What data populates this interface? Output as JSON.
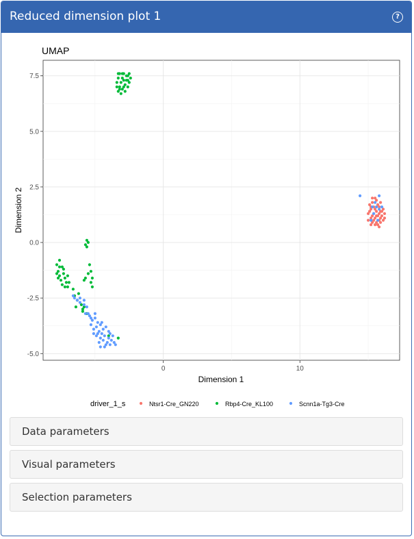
{
  "panel": {
    "title": "Reduced dimension plot 1",
    "help_icon": "question-circle-icon",
    "help_glyph": "?"
  },
  "chart_data": {
    "type": "scatter",
    "title": "UMAP",
    "xlabel": "Dimension 1",
    "ylabel": "Dimension 2",
    "xlim": [
      -8.8,
      17.3
    ],
    "ylim": [
      -5.3,
      8.2
    ],
    "x_ticks": [
      0,
      10
    ],
    "x_tick_labels": [
      "0",
      "10"
    ],
    "y_ticks": [
      7.5,
      5.0,
      2.5,
      0.0,
      -2.5,
      -5.0
    ],
    "y_tick_labels": [
      "7.5",
      "5.0",
      "2.5",
      "0.0",
      "-2.5",
      "-5.0"
    ],
    "grid": true,
    "legend_position": "bottom",
    "legend_title": "driver_1_s",
    "series": [
      {
        "name": "Ntsr1-Cre_GN220",
        "color": "#F8766D",
        "points": [
          [
            15.3,
            2.0
          ],
          [
            15.6,
            1.9
          ],
          [
            15.9,
            1.8
          ],
          [
            15.1,
            1.7
          ],
          [
            15.4,
            1.6
          ],
          [
            15.8,
            1.6
          ],
          [
            16.1,
            1.5
          ],
          [
            15.2,
            1.5
          ],
          [
            15.6,
            1.4
          ],
          [
            15.9,
            1.4
          ],
          [
            16.2,
            1.3
          ],
          [
            15.0,
            1.3
          ],
          [
            15.4,
            1.3
          ],
          [
            15.7,
            1.2
          ],
          [
            16.0,
            1.2
          ],
          [
            15.2,
            1.1
          ],
          [
            15.5,
            1.1
          ],
          [
            15.8,
            1.0
          ],
          [
            16.1,
            1.0
          ],
          [
            15.0,
            1.0
          ],
          [
            15.3,
            0.9
          ],
          [
            15.6,
            0.9
          ],
          [
            15.9,
            0.9
          ],
          [
            15.2,
            0.8
          ],
          [
            15.5,
            0.8
          ],
          [
            15.8,
            0.7
          ],
          [
            15.3,
            1.8
          ],
          [
            15.7,
            1.7
          ],
          [
            15.5,
            1.5
          ],
          [
            15.1,
            1.4
          ],
          [
            16.0,
            1.4
          ],
          [
            15.3,
            1.2
          ],
          [
            15.9,
            1.1
          ],
          [
            15.4,
            1.0
          ],
          [
            15.7,
            0.8
          ],
          [
            16.2,
            1.1
          ],
          [
            15.6,
            1.2
          ],
          [
            15.8,
            1.3
          ],
          [
            15.2,
            1.6
          ],
          [
            15.5,
            2.0
          ]
        ]
      },
      {
        "name": "Rbp4-Cre_KL100",
        "color": "#00BA38",
        "points": [
          [
            -3.2,
            7.6
          ],
          [
            -2.9,
            7.6
          ],
          [
            -2.6,
            7.5
          ],
          [
            -3.3,
            7.4
          ],
          [
            -3.0,
            7.4
          ],
          [
            -2.7,
            7.3
          ],
          [
            -2.4,
            7.4
          ],
          [
            -3.4,
            7.2
          ],
          [
            -3.1,
            7.2
          ],
          [
            -2.8,
            7.1
          ],
          [
            -2.5,
            7.2
          ],
          [
            -3.2,
            7.0
          ],
          [
            -2.9,
            7.0
          ],
          [
            -2.6,
            7.0
          ],
          [
            -3.3,
            6.8
          ],
          [
            -3.0,
            6.9
          ],
          [
            -2.8,
            6.8
          ],
          [
            -3.1,
            6.7
          ],
          [
            -3.4,
            7.0
          ],
          [
            -2.7,
            7.5
          ],
          [
            -3.0,
            7.6
          ],
          [
            -3.3,
            7.6
          ],
          [
            -2.5,
            7.6
          ],
          [
            -2.9,
            7.3
          ],
          [
            -3.2,
            6.9
          ],
          [
            -2.6,
            7.3
          ],
          [
            -7.6,
            -0.8
          ],
          [
            -7.8,
            -1.0
          ],
          [
            -7.4,
            -1.1
          ],
          [
            -7.7,
            -1.3
          ],
          [
            -7.3,
            -1.4
          ],
          [
            -7.6,
            -1.5
          ],
          [
            -7.2,
            -1.6
          ],
          [
            -7.8,
            -1.4
          ],
          [
            -7.5,
            -1.7
          ],
          [
            -7.1,
            -1.8
          ],
          [
            -7.4,
            -1.9
          ],
          [
            -7.0,
            -2.0
          ],
          [
            -7.3,
            -1.2
          ],
          [
            -7.7,
            -1.6
          ],
          [
            -7.6,
            -1.1
          ],
          [
            -7.0,
            -1.5
          ],
          [
            -6.9,
            -1.8
          ],
          [
            -7.2,
            -2.0
          ],
          [
            -5.6,
            0.1
          ],
          [
            -5.5,
            0.0
          ],
          [
            -5.7,
            -0.1
          ],
          [
            -5.6,
            -0.2
          ],
          [
            -5.4,
            -1.0
          ],
          [
            -5.3,
            -1.3
          ],
          [
            -5.5,
            -1.4
          ],
          [
            -5.2,
            -1.6
          ],
          [
            -5.3,
            -1.8
          ],
          [
            -5.2,
            -2.0
          ],
          [
            -5.7,
            -1.6
          ],
          [
            -5.8,
            -1.7
          ],
          [
            -6.6,
            -2.1
          ],
          [
            -6.5,
            -2.4
          ],
          [
            -6.3,
            -2.6
          ],
          [
            -6.0,
            -2.8
          ],
          [
            -5.8,
            -2.9
          ],
          [
            -5.9,
            -3.0
          ],
          [
            -6.4,
            -2.9
          ],
          [
            -3.3,
            -4.3
          ],
          [
            -4.0,
            -4.2
          ],
          [
            -6.2,
            -2.3
          ],
          [
            -5.9,
            -3.1
          ],
          [
            -5.6,
            -3.2
          ]
        ]
      },
      {
        "name": "Scnn1a-Tg3-Cre",
        "color": "#619CFF",
        "points": [
          [
            -6.5,
            -2.5
          ],
          [
            -6.3,
            -2.6
          ],
          [
            -6.1,
            -2.7
          ],
          [
            -5.8,
            -2.6
          ],
          [
            -5.6,
            -2.9
          ],
          [
            -5.4,
            -3.3
          ],
          [
            -5.2,
            -3.5
          ],
          [
            -5.0,
            -3.4
          ],
          [
            -4.8,
            -3.6
          ],
          [
            -5.3,
            -3.7
          ],
          [
            -5.1,
            -3.9
          ],
          [
            -4.9,
            -3.8
          ],
          [
            -4.6,
            -3.7
          ],
          [
            -4.4,
            -3.9
          ],
          [
            -4.7,
            -4.0
          ],
          [
            -4.5,
            -4.1
          ],
          [
            -4.3,
            -4.2
          ],
          [
            -4.0,
            -4.3
          ],
          [
            -3.8,
            -4.4
          ],
          [
            -4.9,
            -4.2
          ],
          [
            -4.6,
            -4.3
          ],
          [
            -4.4,
            -4.4
          ],
          [
            -4.1,
            -4.5
          ],
          [
            -3.9,
            -4.6
          ],
          [
            -3.6,
            -4.5
          ],
          [
            -4.7,
            -4.5
          ],
          [
            -4.2,
            -4.6
          ],
          [
            -3.7,
            -4.2
          ],
          [
            -5.1,
            -4.1
          ],
          [
            -4.5,
            -3.6
          ],
          [
            -3.5,
            -4.6
          ],
          [
            -4.3,
            -4.7
          ],
          [
            -4.8,
            -4.1
          ],
          [
            -4.0,
            -4.0
          ],
          [
            -5.5,
            -3.2
          ],
          [
            -5.0,
            -3.2
          ],
          [
            -5.3,
            -3.4
          ],
          [
            -4.2,
            -3.8
          ],
          [
            -3.9,
            -4.1
          ],
          [
            -4.6,
            -4.7
          ],
          [
            -5.7,
            -3.2
          ],
          [
            -6.1,
            -2.5
          ],
          [
            -5.8,
            -2.8
          ],
          [
            -6.6,
            -2.4
          ],
          [
            14.4,
            2.1
          ],
          [
            15.8,
            2.1
          ],
          [
            15.6,
            1.6
          ],
          [
            15.8,
            1.5
          ],
          [
            15.3,
            1.6
          ],
          [
            15.2,
            1.0
          ],
          [
            15.7,
            1.0
          ],
          [
            15.4,
            1.3
          ],
          [
            16.0,
            1.6
          ],
          [
            15.5,
            1.8
          ]
        ]
      }
    ]
  },
  "sections": [
    {
      "label": "Data parameters"
    },
    {
      "label": "Visual parameters"
    },
    {
      "label": "Selection parameters"
    }
  ]
}
